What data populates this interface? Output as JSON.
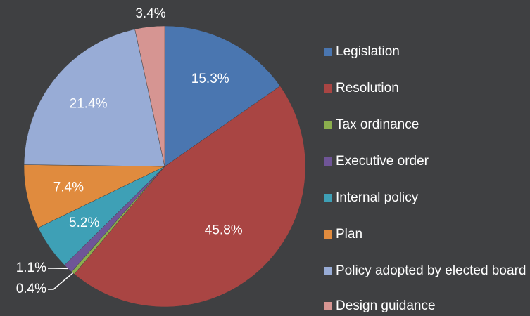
{
  "chart_data": {
    "type": "pie",
    "categories": [
      "Legislation",
      "Resolution",
      "Tax ordinance",
      "Executive order",
      "Internal policy",
      "Plan",
      "Policy adopted by elected board",
      "Design guidance"
    ],
    "values": [
      15.3,
      45.8,
      0.4,
      1.1,
      5.2,
      7.4,
      21.4,
      3.4
    ],
    "value_labels": [
      "15.3%",
      "45.8%",
      "0.4%",
      "1.1%",
      "5.2%",
      "7.4%",
      "21.4%",
      "3.4%"
    ],
    "colors": [
      "#4a76b0",
      "#a94543",
      "#8bae4d",
      "#6f5597",
      "#3ea0b6",
      "#e08b3e",
      "#98acd6",
      "#d69592"
    ],
    "legend": "right"
  }
}
